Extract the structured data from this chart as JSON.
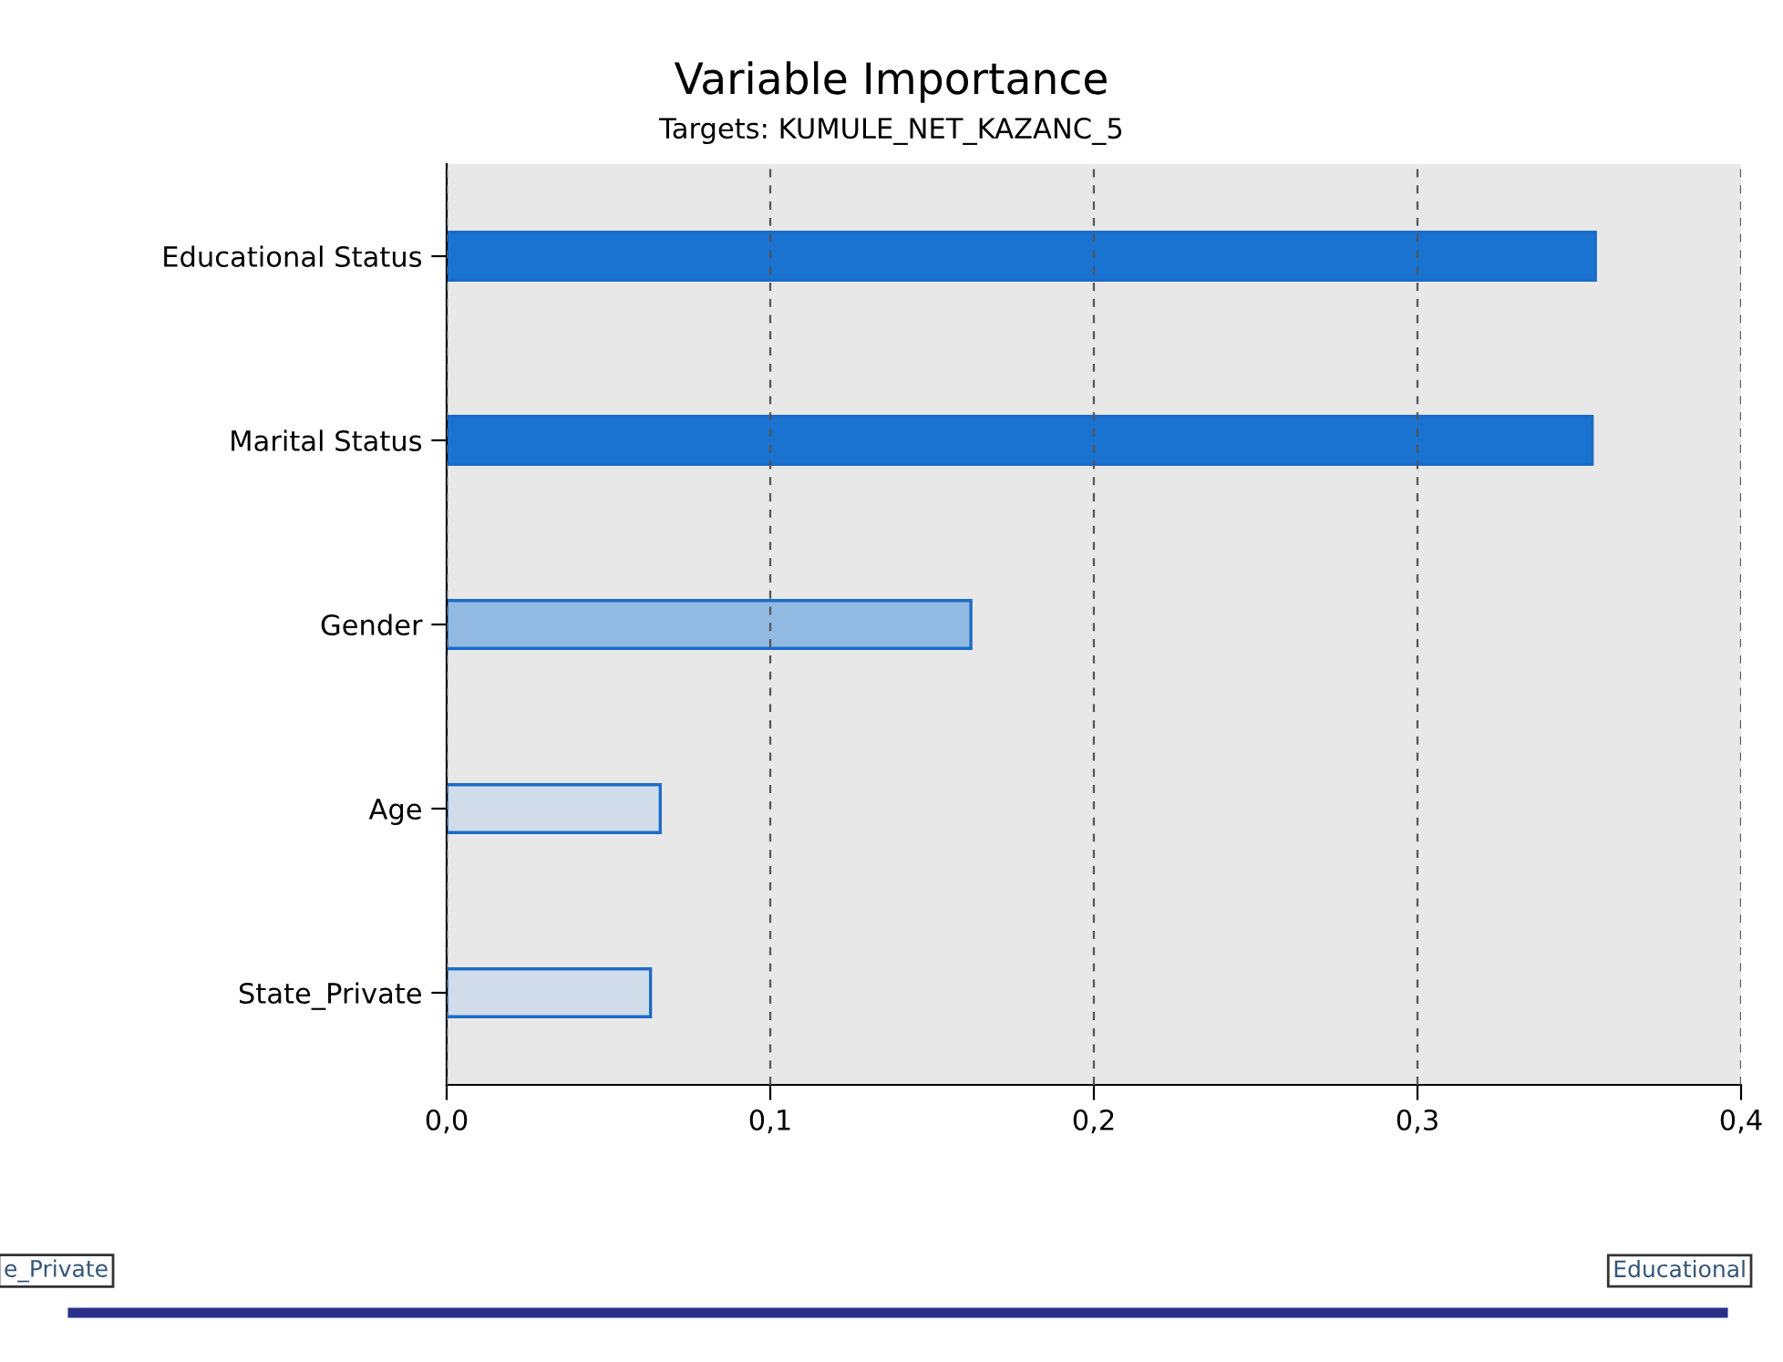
{
  "chart_data": {
    "type": "bar",
    "orientation": "horizontal",
    "title": "Variable Importance",
    "subtitle": "Targets: KUMULE_NET_KAZANC_5",
    "categories": [
      "Educational Status",
      "Marital Status",
      "Gender",
      "Age",
      "State_Private"
    ],
    "values": [
      0.355,
      0.354,
      0.162,
      0.066,
      0.063
    ],
    "colors": [
      "#1a73d0",
      "#1a73d0",
      "#92b9e2",
      "#d0dcea",
      "#d0dcea"
    ],
    "xlim": [
      0,
      0.4
    ],
    "xticks": [
      {
        "value": 0,
        "label": "0,0"
      },
      {
        "value": 0.1,
        "label": "0,1"
      },
      {
        "value": 0.2,
        "label": "0,2"
      },
      {
        "value": 0.3,
        "label": "0,3"
      },
      {
        "value": 0.4,
        "label": "0,4"
      }
    ],
    "grid": "x",
    "annotations": [
      "e_Private",
      "Educational"
    ]
  }
}
